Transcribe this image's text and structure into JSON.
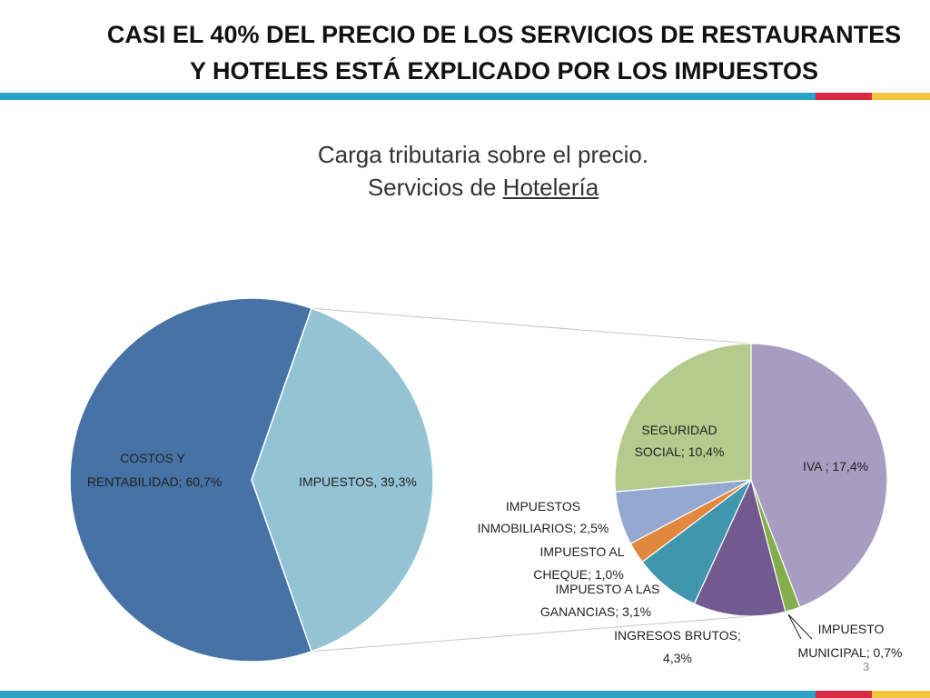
{
  "slide": {
    "title_line1": "CASI EL 40% DEL PRECIO DE LOS SERVICIOS DE RESTAURANTES",
    "title_line2": "Y HOTELES ESTÁ EXPLICADO POR LOS IMPUESTOS",
    "page_number": "3",
    "stripe_colors": [
      "#2aa3c7",
      "#d92a44",
      "#f4c53f"
    ]
  },
  "chart_data": {
    "type": "pie",
    "title_line1": "Carga tributaria sobre el precio.",
    "title_line2_prefix": "Servicios de ",
    "title_line2_underlined": "Hotelería",
    "main_pie": {
      "slices": [
        {
          "label": "COSTOS Y RENTABILIDAD; 60,7%",
          "value": 60.7,
          "color": "#4672a6"
        },
        {
          "label": "IMPUESTOS, 39,3%",
          "value": 39.3,
          "color": "#94c3d6"
        }
      ]
    },
    "tax_breakdown_pie": {
      "slices": [
        {
          "label": "IVA ; 17,4%",
          "value": 17.4,
          "color": "#a99cc2"
        },
        {
          "label": "IMPUESTO MUNICIPAL; 0,7%",
          "value": 0.7,
          "color": "#82ae4c"
        },
        {
          "label": "INGRESOS BRUTOS; 4,3%",
          "value": 4.3,
          "color": "#72598e"
        },
        {
          "label": "IMPUESTO A LAS GANANCIAS; 3,1%",
          "value": 3.1,
          "color": "#3f96ad"
        },
        {
          "label": "IMPUESTO AL CHEQUE; 1,0%",
          "value": 1.0,
          "color": "#e2873e"
        },
        {
          "label": "IMPUESTOS INMOBILIARIOS; 2,5%",
          "value": 2.5,
          "color": "#94a8d2"
        },
        {
          "label": "SEGURIDAD SOCIAL; 10,4%",
          "value": 10.4,
          "color": "#b5cb8d"
        }
      ]
    }
  }
}
